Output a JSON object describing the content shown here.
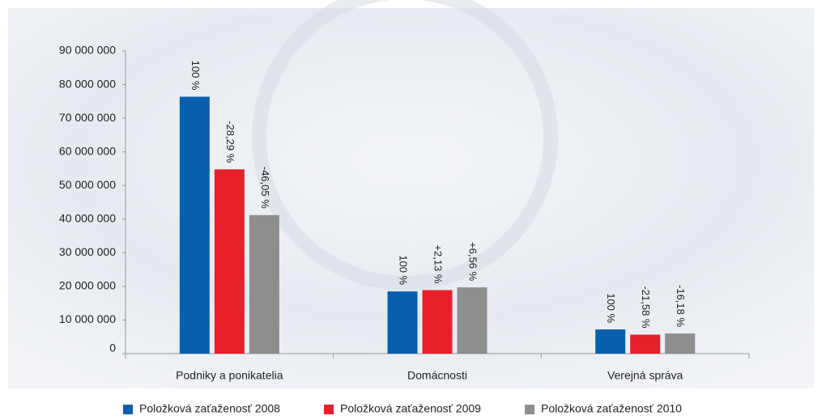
{
  "chart_data": {
    "type": "bar",
    "categories": [
      "Podniky a ponikatelia",
      "Domácnosti",
      "Verejná správa"
    ],
    "series": [
      {
        "name": "Položková zaťaženosť 2008",
        "color": "#0a5fad",
        "values": [
          76400000,
          18500000,
          7200000
        ],
        "value_annotations": [
          "100 %",
          "100 %",
          "100 %"
        ]
      },
      {
        "name": "Položková zaťaženosť 2009",
        "color": "#e8202a",
        "values": [
          54800000,
          18900000,
          5650000
        ],
        "value_annotations": [
          "-28,29 %",
          "+2,13 %",
          "-21,58 %"
        ]
      },
      {
        "name": "Položková zaťaženosť 2010",
        "color": "#8e8e8e",
        "values": [
          41200000,
          19700000,
          6000000
        ],
        "value_annotations": [
          "-46,05 %",
          "+6,56 %",
          "-16,18 %"
        ]
      }
    ],
    "ylim": [
      0,
      90000000
    ],
    "yticks": [
      0,
      {
        "value": 10000000,
        "label": "10 000 000"
      },
      {
        "value": 20000000,
        "label": "20 000 000"
      },
      {
        "value": 30000000,
        "label": "30 000 000"
      },
      {
        "value": 40000000,
        "label": "40 000 000"
      },
      {
        "value": 50000000,
        "label": "50 000 000"
      },
      {
        "value": 60000000,
        "label": "60 000 000"
      },
      {
        "value": 70000000,
        "label": "70 000 000"
      },
      {
        "value": 80000000,
        "label": "80 000 000"
      },
      {
        "value": 90000000,
        "label": "90 000 000"
      }
    ],
    "legend": "bottom"
  }
}
